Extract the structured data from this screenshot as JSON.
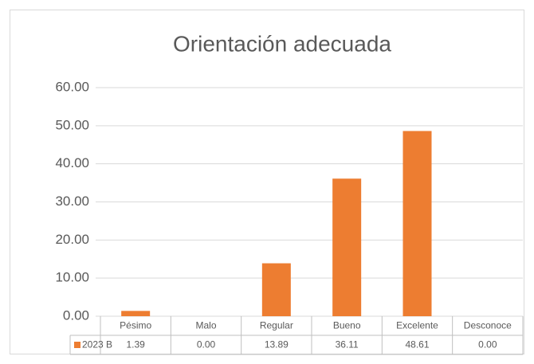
{
  "chart_data": {
    "type": "bar",
    "title": "Orientación adecuada",
    "categories": [
      "Pésimo",
      "Malo",
      "Regular",
      "Bueno",
      "Excelente",
      "Desconoce"
    ],
    "series": [
      {
        "name": "2023 B",
        "color": "#ed7d31",
        "values": [
          1.39,
          0,
          13.89,
          36.11,
          48.61,
          0
        ],
        "value_labels": [
          "1.39",
          "0.00",
          "13.89",
          "36.11",
          "48.61",
          "0.00"
        ]
      }
    ],
    "ylim": [
      0,
      60
    ],
    "yticks": [
      {
        "value": 0,
        "label": "0.00"
      },
      {
        "value": 10,
        "label": "10.00"
      },
      {
        "value": 20,
        "label": "20.00"
      },
      {
        "value": 30,
        "label": "30.00"
      },
      {
        "value": 40,
        "label": "40.00"
      },
      {
        "value": 50,
        "label": "50.00"
      },
      {
        "value": 60,
        "label": "60.00"
      }
    ],
    "grid": true
  }
}
